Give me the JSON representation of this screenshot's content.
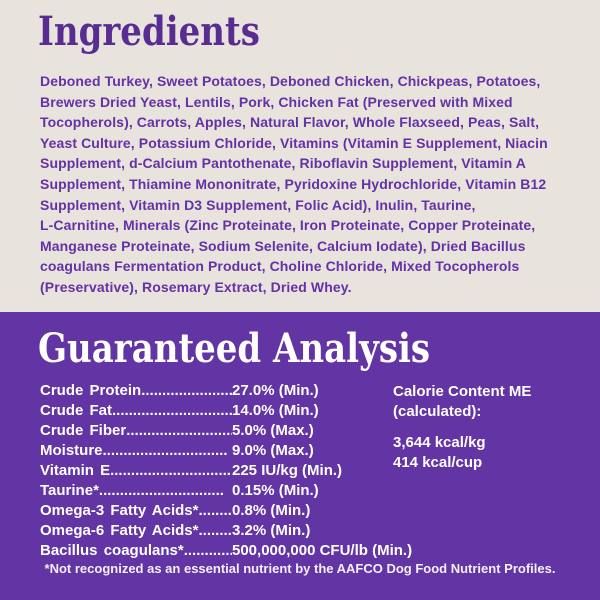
{
  "colors": {
    "top_background": "#e8e4dd",
    "bottom_background": "#6334a3",
    "ingredients_heading": "#582c91",
    "ingredients_text": "#6431a6",
    "analysis_text": "#ffffff"
  },
  "ingredients": {
    "title": "Ingredients",
    "lines": [
      "Deboned Turkey, Sweet Potatoes, Deboned Chicken, Chickpeas, Potatoes,",
      "Brewers Dried Yeast, Lentils, Pork, Chicken Fat (Preserved with Mixed",
      "Tocopherols), Carrots, Apples, Natural Flavor, Whole Flaxseed, Peas, Salt,",
      "Yeast Culture, Potassium Chloride, Vitamins (Vitamin E Supplement, Niacin",
      "Supplement, d-Calcium Pantothenate, Riboflavin Supplement, Vitamin A",
      "Supplement, Thiamine Mononitrate, Pyridoxine Hydrochloride, Vitamin B12",
      "Supplement, Vitamin D3 Supplement, Folic Acid), Inulin, Taurine,",
      "L-Carnitine, Minerals (Zinc Proteinate, Iron Proteinate, Copper Proteinate,",
      "Manganese Proteinate, Sodium Selenite, Calcium Iodate), Dried Bacillus",
      "coagulans Fermentation Product, Choline Chloride, Mixed Tocopherols",
      "(Preservative), Rosemary Extract, Dried Whey."
    ]
  },
  "analysis": {
    "title": "Guaranteed Analysis",
    "rows": [
      {
        "label": "Crude Protein",
        "dots": "..............................",
        "value": "27.0% (Min.)"
      },
      {
        "label": "Crude Fat",
        "dots": "..............................",
        "value": "14.0% (Min.)"
      },
      {
        "label": "Crude Fiber",
        "dots": "..............................",
        "value": "5.0% (Max.)"
      },
      {
        "label": "Moisture",
        "dots": "..............................",
        "value": "9.0% (Max.)"
      },
      {
        "label": "Vitamin E",
        "dots": "..............................",
        "value": "225 IU/kg (Min.)"
      },
      {
        "label": "Taurine*",
        "dots": "..............................",
        "value": "0.15% (Min.)"
      },
      {
        "label": "Omega-3 Fatty Acids*",
        "dots": "..............................",
        "value": "0.8% (Min.)"
      },
      {
        "label": "Omega-6 Fatty Acids*",
        "dots": "..............................",
        "value": "3.2% (Min.)"
      },
      {
        "label": "Bacillus coagulans*",
        "dots": "..............................",
        "value": "500,000,000 CFU/lb (Min.)"
      }
    ],
    "calorie": {
      "heading_line1": "Calorie Content ME",
      "heading_line2": "(calculated):",
      "kcal_per_kg": "3,644 kcal/kg",
      "kcal_per_cup": "414 kcal/cup"
    },
    "footnote": "*Not recognized as an essential nutrient by the AAFCO Dog Food Nutrient Profiles."
  }
}
